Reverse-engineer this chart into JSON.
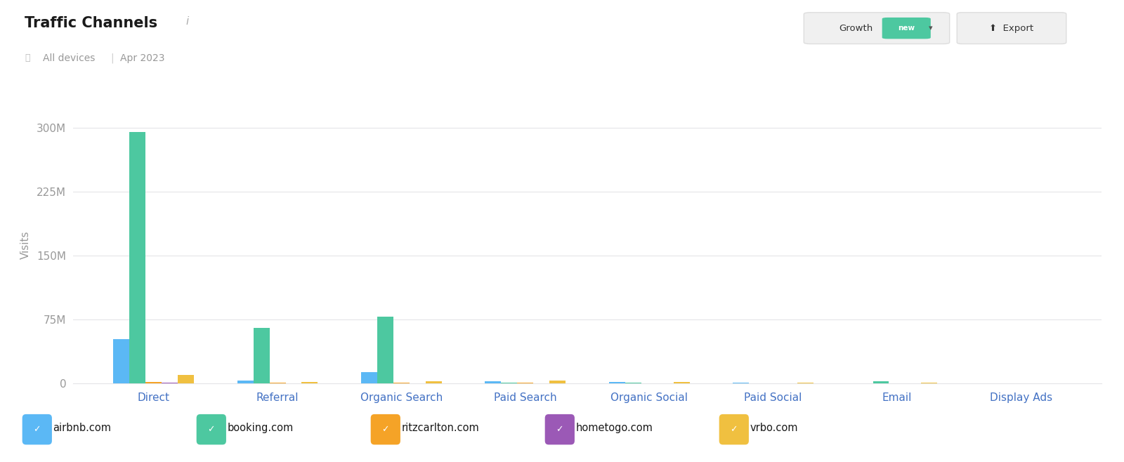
{
  "title": "Traffic Channels",
  "title_info": "i",
  "subtitle_left": "All devices",
  "subtitle_right": "Apr 2023",
  "ylabel": "Visits",
  "channels": [
    "Direct",
    "Referral",
    "Organic Search",
    "Paid Search",
    "Organic Social",
    "Paid Social",
    "Email",
    "Display Ads"
  ],
  "companies": [
    "airbnb.com",
    "booking.com",
    "ritzcarlton.com",
    "hometogo.com",
    "vrbo.com"
  ],
  "colors": [
    "#5BB8F5",
    "#4DC8A0",
    "#F5A327",
    "#9B59B6",
    "#F0C040"
  ],
  "data": {
    "airbnb.com": [
      52000000,
      3000000,
      13000000,
      2500000,
      1500000,
      800000,
      500000,
      300000
    ],
    "booking.com": [
      295000000,
      65000000,
      78000000,
      1200000,
      1000000,
      400000,
      2500000,
      350000
    ],
    "ritzcarlton.com": [
      1500000,
      800000,
      1200000,
      1200000,
      400000,
      300000,
      200000,
      200000
    ],
    "hometogo.com": [
      800000,
      500000,
      500000,
      400000,
      300000,
      200000,
      100000,
      100000
    ],
    "vrbo.com": [
      10000000,
      1500000,
      2500000,
      3500000,
      1500000,
      1200000,
      800000,
      500000
    ]
  },
  "ylim": [
    0,
    325000000
  ],
  "yticks": [
    0,
    75000000,
    150000000,
    225000000,
    300000000
  ],
  "ytick_labels": [
    "0",
    "75M",
    "150M",
    "225M",
    "300M"
  ],
  "background_color": "#ffffff",
  "grid_color": "#e5e5e8",
  "title_color": "#1a1a1a",
  "subtitle_color": "#999999",
  "channel_label_color": "#4472C4",
  "ytick_color": "#999999",
  "ylabel_color": "#999999"
}
